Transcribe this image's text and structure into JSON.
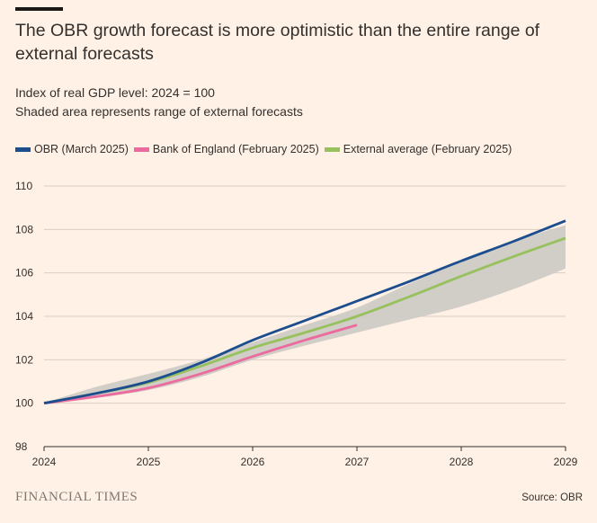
{
  "header": {
    "title": "The OBR growth forecast is more optimistic than the entire range of external forecasts",
    "subtitle_line1": "Index of real GDP level: 2024 = 100",
    "subtitle_line2": "Shaded area represents range of external forecasts"
  },
  "footer": {
    "brand": "FINANCIAL TIMES",
    "source": "Source: OBR"
  },
  "colors": {
    "background": "#fff1e5",
    "obr": "#1c4e8f",
    "boe": "#ec6b9e",
    "external": "#96c15c",
    "range": "#cfcac5",
    "grid": "#d9cec4",
    "axis": "#33302e"
  },
  "chart_data": {
    "type": "line",
    "xlabel": "",
    "ylabel": "",
    "xlim": [
      2024,
      2029
    ],
    "ylim": [
      98,
      110
    ],
    "x_ticks": [
      2024,
      2025,
      2026,
      2027,
      2028,
      2029
    ],
    "y_ticks": [
      98,
      100,
      102,
      104,
      106,
      108,
      110
    ],
    "grid": true,
    "legend_position": "top-left",
    "series": [
      {
        "name": "OBR (March 2025)",
        "color": "#1c4e8f",
        "x": [
          2024,
          2024.5,
          2025,
          2025.5,
          2026,
          2026.5,
          2027,
          2027.5,
          2028,
          2028.5,
          2029
        ],
        "y": [
          100,
          100.45,
          101.0,
          101.85,
          102.9,
          103.8,
          104.7,
          105.6,
          106.55,
          107.45,
          108.4
        ]
      },
      {
        "name": "Bank of England (February 2025)",
        "color": "#ec6b9e",
        "x": [
          2024,
          2024.5,
          2025,
          2025.5,
          2026,
          2026.5,
          2027
        ],
        "y": [
          100,
          100.3,
          100.7,
          101.35,
          102.15,
          102.9,
          103.6
        ]
      },
      {
        "name": "External average (February 2025)",
        "color": "#96c15c",
        "x": [
          2024,
          2024.5,
          2025,
          2025.5,
          2026,
          2026.5,
          2027,
          2027.5,
          2028,
          2028.5,
          2029
        ],
        "y": [
          100,
          100.45,
          100.95,
          101.7,
          102.55,
          103.25,
          104.0,
          104.9,
          105.85,
          106.75,
          107.6
        ]
      }
    ],
    "range": {
      "name": "Range of external forecasts",
      "color": "#cfcac5",
      "x": [
        2024,
        2024.5,
        2025,
        2025.5,
        2026,
        2026.5,
        2027,
        2027.5,
        2028,
        2028.5,
        2029
      ],
      "upper": [
        100,
        100.75,
        101.35,
        102.0,
        102.8,
        103.6,
        104.4,
        105.5,
        106.5,
        107.45,
        108.2
      ],
      "lower": [
        100,
        100.25,
        100.6,
        101.2,
        102.0,
        102.65,
        103.25,
        103.85,
        104.45,
        105.25,
        106.2
      ]
    }
  }
}
